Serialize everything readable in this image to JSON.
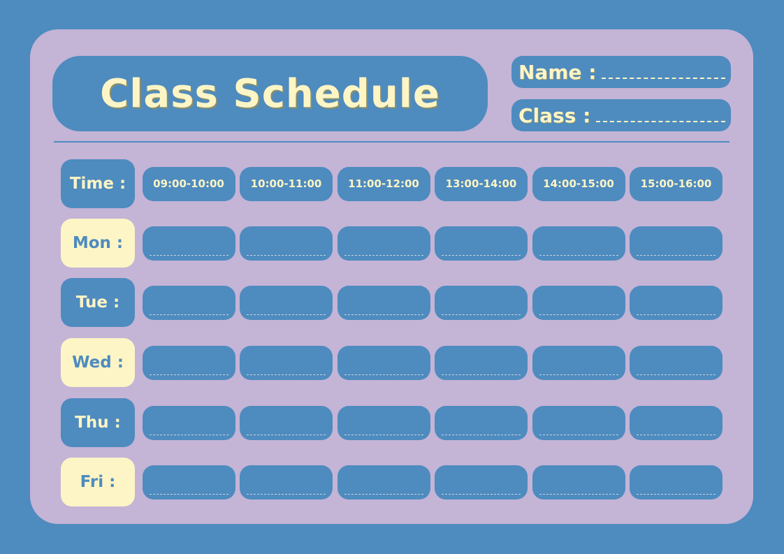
{
  "title": "Class Schedule",
  "fields": {
    "name_label": "Name :",
    "class_label": "Class :"
  },
  "time_label": "Time :",
  "time_slots": [
    "09:00-10:00",
    "10:00-11:00",
    "11:00-12:00",
    "13:00-14:00",
    "14:00-15:00",
    "15:00-16:00"
  ],
  "days": [
    "Mon :",
    "Tue :",
    "Wed :",
    "Thu :",
    "Fri :"
  ],
  "colors": {
    "background": "#4e8bbf",
    "card": "#c4b4d6",
    "accent_cream": "#fdf5c5"
  }
}
